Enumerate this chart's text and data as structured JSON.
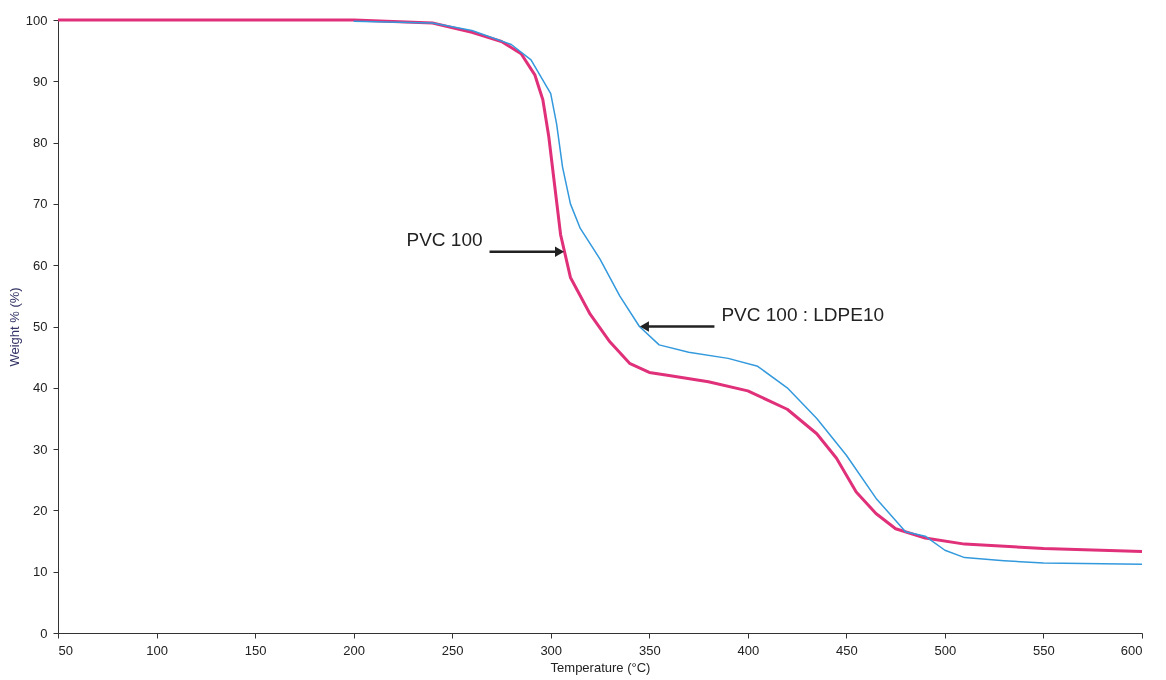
{
  "chart_data": {
    "type": "line",
    "xlabel": "Temperature (°C)",
    "ylabel": "Weight % (%)",
    "xlim": [
      50,
      600
    ],
    "xticks": [
      50,
      100,
      150,
      200,
      250,
      300,
      350,
      400,
      450,
      500,
      550,
      600
    ],
    "ylim": [
      0,
      100
    ],
    "yticks": [
      0,
      10,
      20,
      30,
      40,
      50,
      60,
      70,
      80,
      90,
      100
    ],
    "grid": false,
    "marker": "none",
    "line_style": "solid",
    "series": [
      {
        "color": "#e0307a",
        "x": [
          50,
          200,
          240,
          260,
          275,
          285,
          292,
          296,
          299,
          302,
          305,
          310,
          320,
          330,
          340,
          350,
          360,
          380,
          400,
          420,
          435,
          445,
          455,
          465,
          475,
          490,
          510,
          550,
          600
        ],
        "values": [
          100,
          100,
          99.5,
          98,
          96.5,
          94.5,
          91,
          87,
          81,
          73,
          65,
          58,
          52,
          47.5,
          44,
          42.5,
          42,
          41,
          39.5,
          36.5,
          32.5,
          28.5,
          23,
          19.5,
          17,
          15.5,
          14.5,
          13.8,
          13.3
        ]
      },
      {
        "color": "#3399dd",
        "x": [
          200,
          240,
          260,
          280,
          290,
          300,
          303,
          306,
          310,
          315,
          325,
          335,
          345,
          355,
          370,
          390,
          405,
          420,
          435,
          450,
          465,
          480,
          490,
          500,
          510,
          530,
          550,
          600
        ],
        "values": [
          99.8,
          99.5,
          98.3,
          96,
          93.5,
          88,
          83,
          76,
          70,
          66,
          61,
          55,
          50,
          47,
          45.8,
          44.8,
          43.5,
          40,
          35,
          29,
          22,
          16.5,
          15.8,
          13.5,
          12.3,
          11.8,
          11.4,
          11.2
        ]
      }
    ],
    "annotations": [
      {
        "text": "PVC 100",
        "x": 307,
        "y": 62.2
      },
      {
        "text": "PVC 100 : LDPE10",
        "x": 345,
        "y": 50
      }
    ]
  }
}
